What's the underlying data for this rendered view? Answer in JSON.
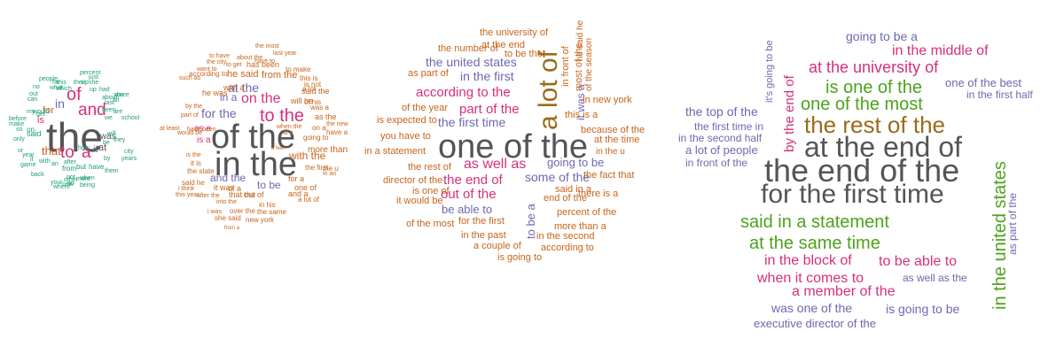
{
  "palette": {
    "grey": "#555555",
    "magenta": "#d6307a",
    "orange": "#c8641a",
    "purple": "#6d68b0",
    "teal": "#1b9e77",
    "green": "#4ea21a",
    "brown": "#9a6a1c"
  },
  "clouds": [
    {
      "name": "word-cloud-1-gram",
      "words": [
        {
          "t": "the",
          "c": "grey"
        },
        {
          "t": "of",
          "c": "magenta"
        },
        {
          "t": "and",
          "c": "magenta"
        },
        {
          "t": "to",
          "c": "magenta"
        },
        {
          "t": "a",
          "c": "magenta"
        },
        {
          "t": "in",
          "c": "purple"
        },
        {
          "t": "is",
          "c": "magenta"
        },
        {
          "t": "that",
          "c": "orange"
        },
        {
          "t": "for",
          "c": "orange"
        },
        {
          "t": "it",
          "c": "purple"
        },
        {
          "t": "at",
          "c": "grey"
        },
        {
          "t": "was",
          "c": "grey"
        },
        {
          "t": "on",
          "c": "teal"
        },
        {
          "t": "said",
          "c": "teal"
        },
        {
          "t": "people",
          "c": "teal"
        },
        {
          "t": "percent",
          "c": "teal"
        },
        {
          "t": "he",
          "c": "teal"
        },
        {
          "t": "just",
          "c": "teal"
        },
        {
          "t": "their",
          "c": "teal"
        },
        {
          "t": "she",
          "c": "teal"
        },
        {
          "t": "had",
          "c": "teal"
        },
        {
          "t": "all",
          "c": "teal"
        },
        {
          "t": "you",
          "c": "teal"
        },
        {
          "t": "three",
          "c": "teal"
        },
        {
          "t": "about",
          "c": "teal"
        },
        {
          "t": "up",
          "c": "teal"
        },
        {
          "t": "school",
          "c": "teal"
        },
        {
          "t": "city",
          "c": "teal"
        },
        {
          "t": "years",
          "c": "teal"
        },
        {
          "t": "been",
          "c": "teal"
        },
        {
          "t": "but",
          "c": "teal"
        },
        {
          "t": "have",
          "c": "teal"
        },
        {
          "t": "from",
          "c": "teal"
        },
        {
          "t": "after",
          "c": "teal"
        },
        {
          "t": "they",
          "c": "teal"
        },
        {
          "t": "be",
          "c": "teal"
        },
        {
          "t": "out",
          "c": "teal"
        },
        {
          "t": "get",
          "c": "teal"
        },
        {
          "t": "can",
          "c": "teal"
        },
        {
          "t": "no",
          "c": "teal"
        },
        {
          "t": "my",
          "c": "teal"
        },
        {
          "t": "would",
          "c": "teal"
        },
        {
          "t": "before",
          "c": "teal"
        },
        {
          "t": "make",
          "c": "teal"
        },
        {
          "t": "only",
          "c": "teal"
        },
        {
          "t": "year",
          "c": "teal"
        },
        {
          "t": "game",
          "c": "teal"
        },
        {
          "t": "back",
          "c": "teal"
        },
        {
          "t": "where",
          "c": "teal"
        },
        {
          "t": "your",
          "c": "teal"
        },
        {
          "t": "them",
          "c": "teal"
        },
        {
          "t": "when",
          "c": "teal"
        },
        {
          "t": "last",
          "c": "teal"
        },
        {
          "t": "will",
          "c": "teal"
        },
        {
          "t": "are",
          "c": "teal"
        },
        {
          "t": "so",
          "c": "teal"
        },
        {
          "t": "not",
          "c": "teal"
        },
        {
          "t": "which",
          "c": "teal"
        },
        {
          "t": "what",
          "c": "teal"
        },
        {
          "t": "this",
          "c": "teal"
        },
        {
          "t": "with",
          "c": "teal"
        },
        {
          "t": "or",
          "c": "teal"
        },
        {
          "t": "we",
          "c": "teal"
        },
        {
          "t": "an",
          "c": "teal"
        },
        {
          "t": "by",
          "c": "teal"
        },
        {
          "t": "more",
          "c": "teal"
        },
        {
          "t": "new",
          "c": "teal"
        },
        {
          "t": "how",
          "c": "teal"
        },
        {
          "t": "an",
          "c": "teal"
        },
        {
          "t": "other",
          "c": "teal"
        },
        {
          "t": "being",
          "c": "teal"
        },
        {
          "t": "if",
          "c": "teal"
        },
        {
          "t": "up",
          "c": "teal"
        }
      ]
    },
    {
      "name": "word-cloud-2-gram",
      "words": [
        {
          "t": "of the",
          "c": "grey"
        },
        {
          "t": "in the",
          "c": "grey"
        },
        {
          "t": "to the",
          "c": "magenta"
        },
        {
          "t": "on the",
          "c": "magenta"
        },
        {
          "t": "at the",
          "c": "purple"
        },
        {
          "t": "for the",
          "c": "purple"
        },
        {
          "t": "and the",
          "c": "purple"
        },
        {
          "t": "in a",
          "c": "purple"
        },
        {
          "t": "to be",
          "c": "purple"
        },
        {
          "t": "is a",
          "c": "magenta"
        },
        {
          "t": "as a",
          "c": "magenta"
        },
        {
          "t": "with the",
          "c": "orange"
        },
        {
          "t": "he said",
          "c": "orange"
        },
        {
          "t": "from the",
          "c": "orange"
        },
        {
          "t": "has been",
          "c": "orange"
        },
        {
          "t": "with a",
          "c": "orange"
        },
        {
          "t": "it was",
          "c": "orange"
        },
        {
          "t": "he was",
          "c": "orange"
        },
        {
          "t": "for a",
          "c": "orange"
        },
        {
          "t": "that the",
          "c": "orange"
        },
        {
          "t": "and a",
          "c": "orange"
        },
        {
          "t": "more than",
          "c": "orange"
        },
        {
          "t": "one of",
          "c": "orange"
        },
        {
          "t": "the first",
          "c": "orange"
        },
        {
          "t": "out of",
          "c": "orange"
        },
        {
          "t": "of a",
          "c": "orange"
        },
        {
          "t": "it is",
          "c": "orange"
        },
        {
          "t": "by the",
          "c": "orange"
        },
        {
          "t": "the most",
          "c": "orange"
        },
        {
          "t": "last year",
          "c": "orange"
        },
        {
          "t": "to have",
          "c": "orange"
        },
        {
          "t": "about the",
          "c": "orange"
        },
        {
          "t": "have to",
          "c": "orange"
        },
        {
          "t": "the city",
          "c": "orange"
        },
        {
          "t": "to get",
          "c": "orange"
        },
        {
          "t": "want to",
          "c": "orange"
        },
        {
          "t": "according to",
          "c": "orange"
        },
        {
          "t": "such as",
          "c": "orange"
        },
        {
          "t": "part of",
          "c": "orange"
        },
        {
          "t": "would be",
          "c": "orange"
        },
        {
          "t": "i was",
          "c": "orange"
        },
        {
          "t": "said he",
          "c": "orange"
        },
        {
          "t": "i think",
          "c": "orange"
        },
        {
          "t": "this year",
          "c": "orange"
        },
        {
          "t": "the state",
          "c": "orange"
        },
        {
          "t": "is the",
          "c": "orange"
        },
        {
          "t": "at least",
          "c": "orange"
        },
        {
          "t": "have been",
          "c": "orange"
        },
        {
          "t": "into the",
          "c": "orange"
        },
        {
          "t": "after the",
          "c": "orange"
        },
        {
          "t": "will be",
          "c": "orange"
        },
        {
          "t": "said the",
          "c": "orange"
        },
        {
          "t": "of his",
          "c": "orange"
        },
        {
          "t": "was a",
          "c": "orange"
        },
        {
          "t": "to make",
          "c": "orange"
        },
        {
          "t": "this is",
          "c": "orange"
        },
        {
          "t": "is not",
          "c": "orange"
        },
        {
          "t": "a lot",
          "c": "orange"
        },
        {
          "t": "as the",
          "c": "orange"
        },
        {
          "t": "on a",
          "c": "orange"
        },
        {
          "t": "the new",
          "c": "orange"
        },
        {
          "t": "have a",
          "c": "orange"
        },
        {
          "t": "going to",
          "c": "orange"
        },
        {
          "t": "a few",
          "c": "orange"
        },
        {
          "t": "the u",
          "c": "orange"
        },
        {
          "t": "a lot of",
          "c": "orange"
        },
        {
          "t": "in his",
          "c": "orange"
        },
        {
          "t": "over the",
          "c": "orange"
        },
        {
          "t": "the same",
          "c": "orange"
        },
        {
          "t": "she said",
          "c": "orange"
        },
        {
          "t": "new york",
          "c": "orange"
        },
        {
          "t": "from a",
          "c": "orange"
        },
        {
          "t": "when the",
          "c": "orange"
        },
        {
          "t": "at a",
          "c": "orange"
        },
        {
          "t": "in an",
          "c": "orange"
        },
        {
          "t": "the u",
          "c": "orange"
        }
      ]
    },
    {
      "name": "word-cloud-3-gram",
      "words": [
        {
          "t": "one of the",
          "c": "grey"
        },
        {
          "t": "a lot of",
          "c": "brown"
        },
        {
          "t": "as well as",
          "c": "magenta"
        },
        {
          "t": "according to the",
          "c": "magenta"
        },
        {
          "t": "part of the",
          "c": "magenta"
        },
        {
          "t": "the end of",
          "c": "magenta"
        },
        {
          "t": "out of the",
          "c": "magenta"
        },
        {
          "t": "in the first",
          "c": "purple"
        },
        {
          "t": "the united states",
          "c": "purple"
        },
        {
          "t": "some of the",
          "c": "purple"
        },
        {
          "t": "going to be",
          "c": "purple"
        },
        {
          "t": "the first time",
          "c": "purple"
        },
        {
          "t": "be able to",
          "c": "purple"
        },
        {
          "t": "to be a",
          "c": "purple"
        },
        {
          "t": "it was a",
          "c": "purple"
        },
        {
          "t": "the university of",
          "c": "orange"
        },
        {
          "t": "at the end",
          "c": "orange"
        },
        {
          "t": "the number of",
          "c": "orange"
        },
        {
          "t": "to be the",
          "c": "orange"
        },
        {
          "t": "as part of",
          "c": "orange"
        },
        {
          "t": "in front of",
          "c": "orange"
        },
        {
          "t": "most of the",
          "c": "orange"
        },
        {
          "t": "he said he",
          "c": "orange"
        },
        {
          "t": "of the season",
          "c": "orange"
        },
        {
          "t": "in new york",
          "c": "orange"
        },
        {
          "t": "this is a",
          "c": "orange"
        },
        {
          "t": "of the year",
          "c": "orange"
        },
        {
          "t": "is expected to",
          "c": "orange"
        },
        {
          "t": "because of the",
          "c": "orange"
        },
        {
          "t": "at the time",
          "c": "orange"
        },
        {
          "t": "you have to",
          "c": "orange"
        },
        {
          "t": "in the u",
          "c": "orange"
        },
        {
          "t": "in a statement",
          "c": "orange"
        },
        {
          "t": "the rest of",
          "c": "orange"
        },
        {
          "t": "the fact that",
          "c": "orange"
        },
        {
          "t": "director of the",
          "c": "orange"
        },
        {
          "t": "said in a",
          "c": "orange"
        },
        {
          "t": "is one of",
          "c": "orange"
        },
        {
          "t": "end of the",
          "c": "orange"
        },
        {
          "t": "there is a",
          "c": "orange"
        },
        {
          "t": "it would be",
          "c": "orange"
        },
        {
          "t": "percent of the",
          "c": "orange"
        },
        {
          "t": "of the most",
          "c": "orange"
        },
        {
          "t": "for the first",
          "c": "orange"
        },
        {
          "t": "more than a",
          "c": "orange"
        },
        {
          "t": "in the past",
          "c": "orange"
        },
        {
          "t": "in the second",
          "c": "orange"
        },
        {
          "t": "a couple of",
          "c": "orange"
        },
        {
          "t": "according to",
          "c": "orange"
        },
        {
          "t": "is going to",
          "c": "orange"
        }
      ]
    },
    {
      "name": "word-cloud-4-gram",
      "words": [
        {
          "t": "the end of the",
          "c": "grey"
        },
        {
          "t": "at the end of",
          "c": "grey"
        },
        {
          "t": "for the first time",
          "c": "grey"
        },
        {
          "t": "the rest of the",
          "c": "brown"
        },
        {
          "t": "in the united states",
          "c": "green"
        },
        {
          "t": "is one of the",
          "c": "green"
        },
        {
          "t": "one of the most",
          "c": "green"
        },
        {
          "t": "said in a statement",
          "c": "green"
        },
        {
          "t": "at the same time",
          "c": "green"
        },
        {
          "t": "at the university of",
          "c": "magenta"
        },
        {
          "t": "in the middle of",
          "c": "magenta"
        },
        {
          "t": "by the end of",
          "c": "magenta"
        },
        {
          "t": "in the block of",
          "c": "magenta"
        },
        {
          "t": "to be able to",
          "c": "magenta"
        },
        {
          "t": "when it comes to",
          "c": "magenta"
        },
        {
          "t": "a member of the",
          "c": "magenta"
        },
        {
          "t": "going to be a",
          "c": "purple"
        },
        {
          "t": "it's going to be",
          "c": "purple"
        },
        {
          "t": "one of the best",
          "c": "purple"
        },
        {
          "t": "in the first half",
          "c": "purple"
        },
        {
          "t": "the top of the",
          "c": "purple"
        },
        {
          "t": "the first time in",
          "c": "purple"
        },
        {
          "t": "in the second half",
          "c": "purple"
        },
        {
          "t": "a lot of people",
          "c": "purple"
        },
        {
          "t": "in front of the",
          "c": "purple"
        },
        {
          "t": "as part of the",
          "c": "purple"
        },
        {
          "t": "as well as the",
          "c": "purple"
        },
        {
          "t": "was one of the",
          "c": "purple"
        },
        {
          "t": "is going to be",
          "c": "purple"
        },
        {
          "t": "executive director of the",
          "c": "purple"
        }
      ]
    }
  ]
}
